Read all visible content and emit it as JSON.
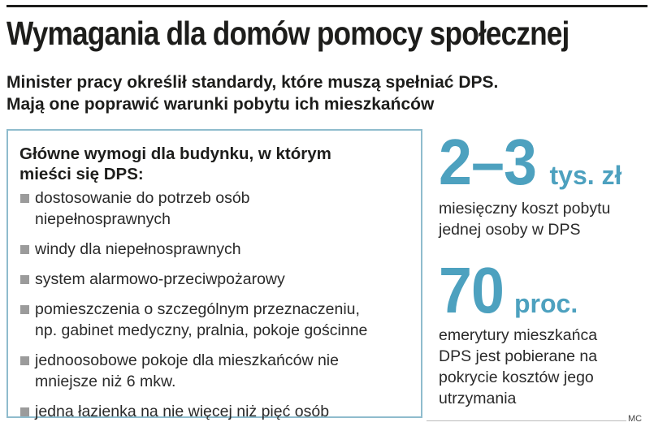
{
  "title": "Wymagania dla domów pomocy społecznej",
  "subtitle": {
    "line1": "Minister pracy określił standardy, które muszą spełniać DPS.",
    "line2": "Mają one poprawić warunki pobytu ich mieszkańców"
  },
  "requirements": {
    "heading_line1": "Główne wymogi dla budynku, w którym",
    "heading_line2": "mieści się DPS:",
    "items": [
      {
        "line1": "dostosowanie do potrzeb osób",
        "line2": "niepełnosprawnych"
      },
      {
        "line1": "windy dla niepełnosprawnych",
        "line2": ""
      },
      {
        "line1": "system alarmowo-przeciwpożarowy",
        "line2": ""
      },
      {
        "line1": "pomieszczenia o szczególnym przeznaczeniu,",
        "line2": "np. gabinet medyczny, pralnia, pokoje gościnne"
      },
      {
        "line1": "jednoosobowe pokoje dla mieszkańców nie",
        "line2": "mniejsze niż 6 mkw."
      },
      {
        "line1": "jedna łazienka na nie więcej niż pięć osób",
        "line2": ""
      }
    ]
  },
  "stats": [
    {
      "value": "2–3",
      "unit": "tys. zł",
      "desc_lines": [
        "miesięczny koszt pobytu",
        "jednej osoby w DPS"
      ]
    },
    {
      "value": "70",
      "unit": "proc.",
      "desc_lines": [
        "emerytury mieszkańca",
        "DPS jest pobierane na",
        "pokrycie kosztów jego",
        "utrzymania"
      ]
    }
  ],
  "credit": "MC",
  "colors": {
    "accent": "#4da1bf",
    "box_border": "#8fbccd",
    "bullet": "#9b9b9b",
    "text": "#1d1d1b"
  }
}
